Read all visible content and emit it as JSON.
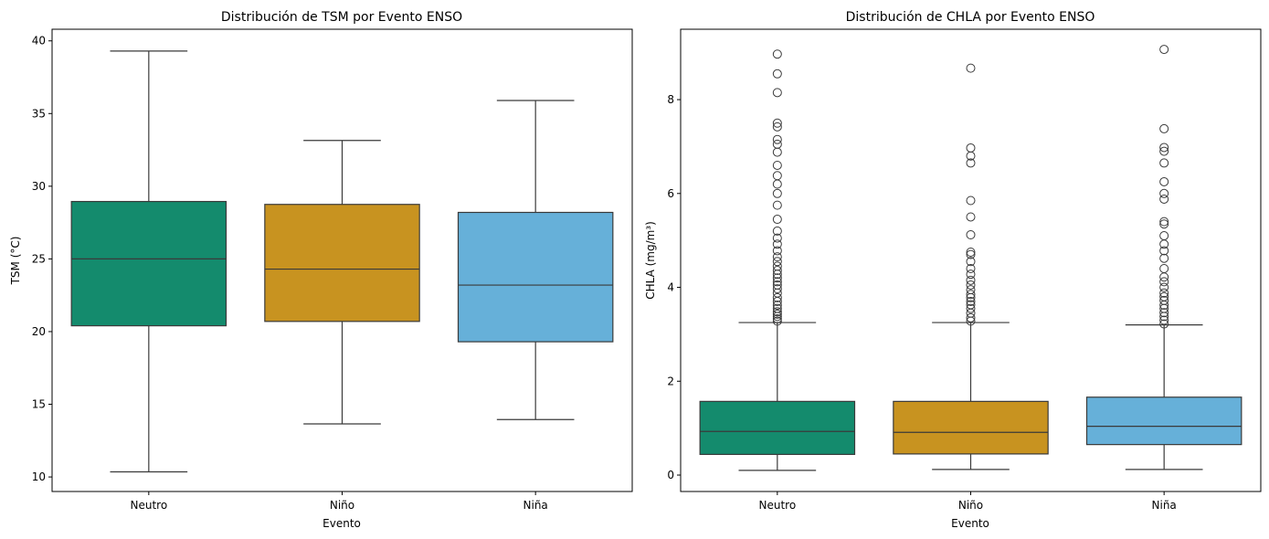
{
  "chart_data": [
    {
      "type": "box",
      "title": "Distribución de TSM por Evento ENSO",
      "xlabel": "Evento",
      "ylabel": "TSM (°C)",
      "categories": [
        "Neutro",
        "Niño",
        "Niña"
      ],
      "colors": [
        "#148b6d",
        "#c89320",
        "#66b0d9"
      ],
      "ylim": [
        9.0,
        40.8
      ],
      "yticks": [
        10,
        15,
        20,
        25,
        30,
        35,
        40
      ],
      "boxes": [
        {
          "category": "Neutro",
          "whisker_low": 10.35,
          "q1": 20.4,
          "median": 25.0,
          "q3": 28.95,
          "whisker_high": 39.3,
          "outliers": []
        },
        {
          "category": "Niño",
          "whisker_low": 13.65,
          "q1": 20.7,
          "median": 24.3,
          "q3": 28.75,
          "whisker_high": 33.15,
          "outliers": []
        },
        {
          "category": "Niña",
          "whisker_low": 13.95,
          "q1": 19.3,
          "median": 23.2,
          "q3": 28.2,
          "whisker_high": 35.9,
          "outliers": []
        }
      ]
    },
    {
      "type": "box",
      "title": "Distribución de CHLA por Evento ENSO",
      "xlabel": "Evento",
      "ylabel": "CHLA (mg/m³)",
      "categories": [
        "Neutro",
        "Niño",
        "Niña"
      ],
      "colors": [
        "#148b6d",
        "#c89320",
        "#66b0d9"
      ],
      "ylim": [
        -0.35,
        9.5
      ],
      "yticks": [
        0,
        2,
        4,
        6,
        8
      ],
      "boxes": [
        {
          "category": "Neutro",
          "whisker_low": 0.1,
          "q1": 0.44,
          "median": 0.93,
          "q3": 1.57,
          "whisker_high": 3.25,
          "outliers": [
            3.28,
            3.33,
            3.38,
            3.43,
            3.48,
            3.55,
            3.62,
            3.7,
            3.78,
            3.88,
            3.97,
            4.05,
            4.12,
            4.2,
            4.28,
            4.36,
            4.45,
            4.55,
            4.65,
            4.78,
            4.92,
            5.05,
            5.2,
            5.45,
            5.75,
            6.0,
            6.2,
            6.38,
            6.6,
            6.88,
            7.05,
            7.15,
            7.42,
            7.5,
            8.15,
            8.55,
            8.97
          ]
        },
        {
          "category": "Niño",
          "whisker_low": 0.12,
          "q1": 0.45,
          "median": 0.91,
          "q3": 1.57,
          "whisker_high": 3.25,
          "outliers": [
            3.28,
            3.35,
            3.45,
            3.55,
            3.63,
            3.7,
            3.78,
            3.85,
            3.95,
            4.05,
            4.15,
            4.28,
            4.4,
            4.55,
            4.7,
            4.75,
            5.12,
            5.5,
            5.85,
            6.65,
            6.8,
            6.97,
            8.67
          ]
        },
        {
          "category": "Niña",
          "whisker_low": 0.12,
          "q1": 0.65,
          "median": 1.04,
          "q3": 1.66,
          "whisker_high": 3.2,
          "outliers": [
            3.22,
            3.3,
            3.38,
            3.46,
            3.55,
            3.62,
            3.72,
            3.8,
            3.88,
            4.0,
            4.12,
            4.22,
            4.4,
            4.62,
            4.78,
            4.92,
            5.1,
            5.35,
            5.4,
            5.88,
            6.0,
            6.25,
            6.65,
            6.9,
            6.98,
            7.38,
            9.07
          ]
        }
      ]
    }
  ]
}
